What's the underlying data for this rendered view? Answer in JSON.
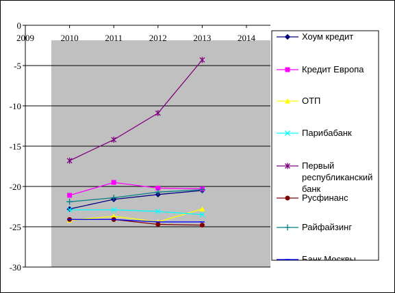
{
  "chart_data": {
    "type": "line",
    "title": "",
    "xlabel": "",
    "ylabel": "",
    "x": [
      2010,
      2011,
      2012,
      2013
    ],
    "x_ticks": [
      "2009",
      "2010",
      "2011",
      "2012",
      "2013",
      "2014"
    ],
    "xlim": [
      2009,
      2014
    ],
    "y_ticks": [
      "0",
      "-5",
      "-10",
      "-15",
      "-20",
      "-25",
      "-30"
    ],
    "ylim": [
      -30,
      0
    ],
    "grid": "horizontal",
    "plot_background": "#c0c0c0",
    "legend_position": "right",
    "series": [
      {
        "name": "Хоум кредит",
        "color": "#000080",
        "marker": "diamond",
        "values": [
          -22.8,
          -21.6,
          -21.0,
          -20.5
        ]
      },
      {
        "name": "Кредит Европа",
        "color": "#ff00ff",
        "marker": "square",
        "values": [
          -21.1,
          -19.5,
          -20.2,
          -20.3
        ]
      },
      {
        "name": "ОТП",
        "color": "#ffff00",
        "marker": "triangle",
        "values": [
          -24.2,
          -23.7,
          -24.4,
          -22.8
        ]
      },
      {
        "name": "Парибабанк",
        "color": "#00ffff",
        "marker": "x",
        "values": [
          -22.9,
          -22.9,
          -23.1,
          -23.5
        ]
      },
      {
        "name": "Первый республиканский банк",
        "legend_lines": [
          "Первый",
          "республиканский",
          "банк"
        ],
        "color": "#800080",
        "marker": "star",
        "values": [
          -16.8,
          -14.2,
          -10.9,
          -4.3
        ]
      },
      {
        "name": "Русфинанс",
        "color": "#800000",
        "marker": "circle",
        "values": [
          -24.1,
          -24.1,
          -24.7,
          -24.8
        ]
      },
      {
        "name": "Райфайзинг",
        "color": "#008080",
        "marker": "plus",
        "values": [
          -21.9,
          -21.4,
          -20.7,
          -20.4
        ]
      },
      {
        "name": "Банк Москвы",
        "color": "#0000ff",
        "marker": "line",
        "values": [
          -24.1,
          -24.1,
          -24.4,
          -24.4
        ]
      }
    ]
  }
}
